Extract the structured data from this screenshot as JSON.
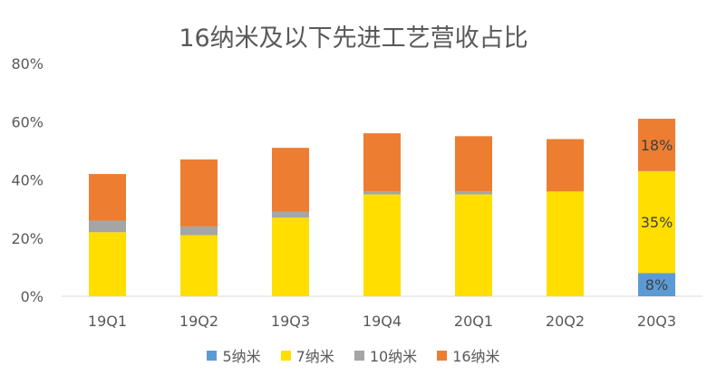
{
  "chart_data": {
    "type": "bar",
    "stacked": true,
    "title": "16纳米及以下先进工艺营收占比",
    "categories": [
      "19Q1",
      "19Q2",
      "19Q3",
      "19Q4",
      "20Q1",
      "20Q2",
      "20Q3"
    ],
    "series": [
      {
        "name": "5纳米",
        "color": "#5B9BD5",
        "values": [
          0,
          0,
          0,
          0,
          0,
          0,
          8
        ]
      },
      {
        "name": "7纳米",
        "color": "#FFDE00",
        "values": [
          22,
          21,
          27,
          35,
          35,
          36,
          35
        ]
      },
      {
        "name": "10纳米",
        "color": "#A5A5A5",
        "values": [
          4,
          3,
          2,
          1,
          1,
          0,
          0
        ]
      },
      {
        "name": "16纳米",
        "color": "#ED7D31",
        "values": [
          16,
          23,
          22,
          20,
          19,
          18,
          18
        ]
      }
    ],
    "data_labels": [
      {
        "category": "20Q3",
        "series": "5纳米",
        "text": "8%"
      },
      {
        "category": "20Q3",
        "series": "7纳米",
        "text": "35%"
      },
      {
        "category": "20Q3",
        "series": "16纳米",
        "text": "18%"
      }
    ],
    "yticks": [
      "0%",
      "20%",
      "40%",
      "60%",
      "80%"
    ],
    "ylim": [
      0,
      80
    ],
    "grid": false,
    "legend_position": "bottom"
  }
}
